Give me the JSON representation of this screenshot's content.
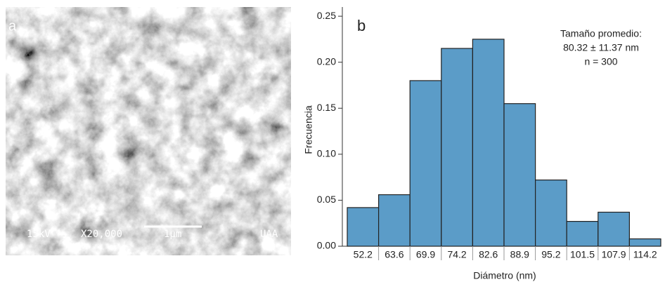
{
  "image_panel": {
    "panel_label": "a",
    "voltage": "15kV",
    "magnification": "X20,000",
    "scale": "1μm",
    "institution": "UAA"
  },
  "chart_data": {
    "type": "bar",
    "panel_label": "b",
    "annotations": [
      "Tamaño promedio:",
      "80.32 ± 11.37 nm",
      "n = 300"
    ],
    "x_label": "Diámetro (nm)",
    "y_label": "Frecuencia",
    "categories": [
      "52.2",
      "63.6",
      "69.9",
      "74.2",
      "82.6",
      "88.9",
      "95.2",
      "101.5",
      "107.9",
      "114.2"
    ],
    "values": [
      0.042,
      0.056,
      0.18,
      0.215,
      0.225,
      0.155,
      0.072,
      0.027,
      0.037,
      0.008
    ],
    "color": "#5b9cc8",
    "ylim": [
      0,
      0.26
    ],
    "yticks": [
      {
        "value": 0,
        "label": "0.00"
      },
      {
        "value": 0.05,
        "label": "0.05"
      },
      {
        "value": 0.1,
        "label": "0.10"
      },
      {
        "value": 0.15,
        "label": "0.15"
      },
      {
        "value": 0.2,
        "label": "0.20"
      },
      {
        "value": 0.25,
        "label": "0.25"
      }
    ]
  }
}
